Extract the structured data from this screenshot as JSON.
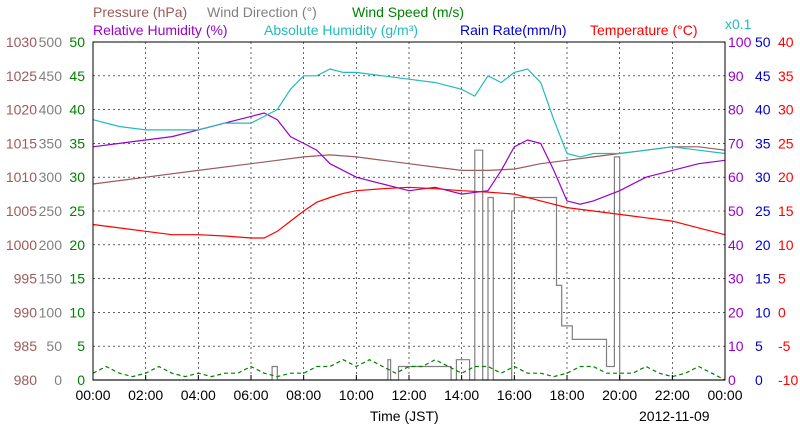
{
  "chart_data": {
    "type": "line",
    "xlabel": "Time (JST)",
    "date": "2012-11-09",
    "x_ticks": [
      "00:00",
      "02:00",
      "04:00",
      "06:00",
      "08:00",
      "10:00",
      "12:00",
      "14:00",
      "16:00",
      "18:00",
      "20:00",
      "22:00",
      "00:00"
    ],
    "xlim_hours": [
      0,
      24
    ],
    "grid": true,
    "multiplier_note": "x0.1",
    "axes": [
      {
        "id": "pressure",
        "side": "left",
        "min": 980,
        "max": 1030,
        "ticks": [
          "980",
          "985",
          "990",
          "995",
          "1000",
          "1005",
          "1010",
          "1015",
          "1020",
          "1025",
          "1030"
        ],
        "color": "#9c5a5a"
      },
      {
        "id": "wind_dir",
        "side": "left",
        "min": 0,
        "max": 500,
        "ticks": [
          "0",
          "50",
          "100",
          "150",
          "200",
          "250",
          "300",
          "350",
          "400",
          "450",
          "500"
        ],
        "color": "#808080"
      },
      {
        "id": "wind_speed",
        "side": "left",
        "min": 0,
        "max": 50,
        "ticks": [
          "0",
          "5",
          "10",
          "15",
          "20",
          "25",
          "30",
          "35",
          "40",
          "45",
          "50"
        ],
        "color": "#008000"
      },
      {
        "id": "rh",
        "side": "right",
        "min": 0,
        "max": 100,
        "ticks": [
          "0",
          "10",
          "20",
          "30",
          "40",
          "50",
          "60",
          "70",
          "80",
          "90",
          "100"
        ],
        "color": "#9900cc"
      },
      {
        "id": "rain",
        "side": "right",
        "min": 0,
        "max": 50,
        "ticks": [
          "0",
          "5",
          "10",
          "15",
          "20",
          "25",
          "30",
          "35",
          "40",
          "45",
          "50"
        ],
        "color": "#0000cc"
      },
      {
        "id": "temp",
        "side": "right",
        "min": -10,
        "max": 40,
        "ticks": [
          "-10",
          "-5",
          "0",
          "5",
          "10",
          "15",
          "20",
          "25",
          "30",
          "35",
          "40"
        ],
        "color": "#ff0000"
      }
    ],
    "legend": [
      {
        "label": "Pressure (hPa)",
        "color": "#9c5a5a"
      },
      {
        "label": "Wind Direction (°)",
        "color": "#808080"
      },
      {
        "label": "Wind Speed (m/s)",
        "color": "#008000"
      },
      {
        "label": "Relative Humidity (%)",
        "color": "#9900cc"
      },
      {
        "label": "Absolute Humidity (g/m³)",
        "color": "#22bbbb"
      },
      {
        "label": "Rain Rate(mm/h)",
        "color": "#0000cc"
      },
      {
        "label": "Temperature (°C)",
        "color": "#ff0000"
      }
    ],
    "series": [
      {
        "name": "Pressure (hPa)",
        "axis": "pressure",
        "color": "#9c5a5a",
        "style": "solid",
        "x": [
          0,
          2,
          4,
          6,
          7,
          8,
          9,
          10,
          11,
          12,
          13,
          14,
          15,
          16,
          17,
          18,
          19,
          20,
          21,
          22,
          23,
          24
        ],
        "y": [
          1009,
          1010,
          1011,
          1012,
          1012.5,
          1013,
          1013.3,
          1013,
          1012.5,
          1012,
          1011.5,
          1011,
          1011,
          1011.2,
          1012,
          1012.5,
          1013,
          1013.5,
          1014,
          1014.5,
          1014.5,
          1014
        ]
      },
      {
        "name": "Wind Direction (°)",
        "axis": "wind_dir",
        "color": "#808080",
        "style": "solid",
        "x": [
          0,
          6.8,
          6.8,
          7.0,
          7.0,
          11.2,
          11.2,
          11.3,
          11.3,
          11.6,
          11.6,
          13.6,
          13.6,
          13.8,
          13.8,
          14.3,
          14.3,
          14.5,
          14.5,
          14.8,
          14.8,
          15.0,
          15.0,
          15.2,
          15.2,
          15.9,
          15.9,
          16.0,
          16.0,
          16.2,
          16.2,
          17.6,
          17.6,
          17.8,
          17.8,
          18.2,
          18.2,
          19.5,
          19.5,
          19.8,
          19.8,
          20.0,
          20.0,
          20.1,
          20.1,
          24
        ],
        "y": [
          0,
          0,
          20,
          20,
          0,
          0,
          30,
          30,
          0,
          0,
          20,
          20,
          0,
          0,
          30,
          30,
          0,
          0,
          340,
          340,
          0,
          0,
          270,
          270,
          0,
          0,
          250,
          250,
          270,
          270,
          270,
          270,
          140,
          140,
          80,
          80,
          60,
          60,
          20,
          20,
          330,
          330,
          0,
          0,
          0,
          0
        ]
      },
      {
        "name": "Wind Speed (m/s)",
        "axis": "wind_speed",
        "color": "#008000",
        "style": "dashed",
        "x": [
          0,
          0.5,
          1,
          1.5,
          2,
          2.5,
          3,
          3.5,
          4,
          4.5,
          5,
          5.5,
          6,
          6.5,
          7,
          7.5,
          8,
          8.5,
          9,
          9.5,
          10,
          10.5,
          11,
          11.5,
          12,
          12.5,
          13,
          13.5,
          14,
          14.5,
          15,
          15.5,
          16,
          16.5,
          17,
          17.5,
          18,
          18.5,
          19,
          19.5,
          20,
          20.5,
          21,
          21.5,
          22,
          22.5,
          23,
          23.5,
          24
        ],
        "y": [
          1,
          2,
          1,
          0.5,
          1,
          2,
          1,
          0.5,
          1,
          0.5,
          1,
          1,
          2,
          1,
          0.5,
          1,
          1,
          2,
          2,
          3,
          2,
          3,
          2,
          1,
          2,
          2,
          3,
          2,
          1,
          2,
          2,
          1,
          2,
          1,
          1,
          0.5,
          1,
          2,
          2,
          1,
          1,
          1,
          2,
          1,
          0.5,
          1,
          2,
          1,
          0
        ]
      },
      {
        "name": "Relative Humidity (%)",
        "axis": "rh",
        "color": "#9900cc",
        "style": "solid",
        "x": [
          0,
          1,
          2,
          3,
          4,
          5,
          6,
          6.5,
          7,
          7.5,
          8,
          8.5,
          9,
          10,
          11,
          12,
          13,
          14,
          15,
          15.5,
          16,
          16.5,
          17,
          17.5,
          18,
          18.5,
          19,
          20,
          21,
          22,
          23,
          24
        ],
        "y": [
          69,
          70,
          71,
          72,
          74,
          76,
          78,
          79,
          77,
          72,
          70,
          68,
          64,
          60,
          58,
          56,
          57,
          55,
          56,
          62,
          69,
          71,
          70,
          62,
          53,
          52,
          53,
          56,
          60,
          62,
          64,
          65
        ]
      },
      {
        "name": "Absolute Humidity (g/m³)",
        "axis": "rh",
        "color": "#22bbbb",
        "style": "solid",
        "x": [
          0,
          1,
          2,
          3,
          4,
          5,
          6,
          6.5,
          7,
          7.5,
          8,
          8.5,
          9,
          9.5,
          10,
          11,
          12,
          13,
          14,
          14.5,
          15,
          15.5,
          16,
          16.5,
          17,
          17.5,
          18,
          18.5,
          19,
          20,
          21,
          22,
          23,
          24
        ],
        "y": [
          77,
          75,
          74,
          74,
          74,
          76,
          76,
          78,
          80,
          86,
          90,
          90,
          92,
          91,
          91,
          90,
          89,
          88,
          86,
          84,
          90,
          88,
          91,
          92,
          88,
          77,
          67,
          66,
          67,
          67,
          68,
          69,
          68,
          67
        ]
      },
      {
        "name": "Temperature (°C)",
        "axis": "temp",
        "color": "#ff0000",
        "style": "solid",
        "x": [
          0,
          1,
          2,
          3,
          4,
          5,
          6,
          6.5,
          7,
          7.5,
          8,
          8.5,
          9,
          9.5,
          10,
          11,
          12,
          13,
          14,
          15,
          16,
          17,
          18,
          19,
          20,
          21,
          22,
          23,
          24
        ],
        "y": [
          13,
          12.5,
          12,
          11.5,
          11.5,
          11.3,
          11,
          11,
          12,
          13.5,
          15,
          16.3,
          17,
          17.6,
          18,
          18.3,
          18.5,
          18.3,
          18,
          17.8,
          17.5,
          16.5,
          15.5,
          15,
          14.5,
          14,
          13.5,
          12.5,
          11.5
        ]
      }
    ]
  }
}
